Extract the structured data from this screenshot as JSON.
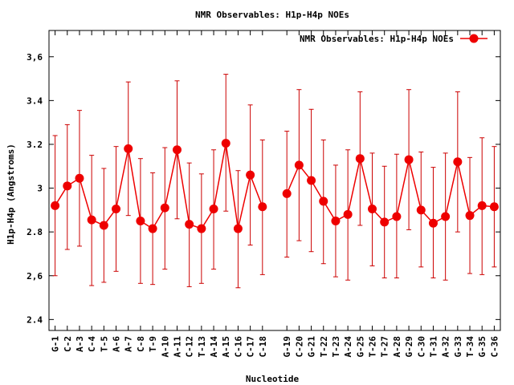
{
  "chart_data": {
    "type": "line",
    "title": "NMR Observables: H1p-H4p NOEs",
    "xlabel": "Nucleotide",
    "ylabel": "H1p-H4p (Angstroms)",
    "ylim": [
      2.35,
      3.72
    ],
    "yticks": [
      2.4,
      2.6,
      2.8,
      3,
      3.2,
      3.4,
      3.6
    ],
    "ytick_labels": [
      "2.4",
      "2,6",
      "2.8",
      "3",
      "3.2",
      "3.4",
      "3,6"
    ],
    "grid": false,
    "legend_position": "top-right",
    "series_color": "#ee0000",
    "error_bar_color": "#cc0000",
    "series": [
      {
        "name": "NMR Observables: H1p-H4p NOEs",
        "points": [
          {
            "label": "G-1",
            "x": 1,
            "y": 2.92,
            "lo": 2.6,
            "hi": 3.24
          },
          {
            "label": "C-2",
            "x": 2,
            "y": 3.01,
            "lo": 2.72,
            "hi": 3.29
          },
          {
            "label": "A-3",
            "x": 3,
            "y": 3.045,
            "lo": 2.735,
            "hi": 3.355
          },
          {
            "label": "C-4",
            "x": 4,
            "y": 2.855,
            "lo": 2.555,
            "hi": 3.15
          },
          {
            "label": "T-5",
            "x": 5,
            "y": 2.83,
            "lo": 2.57,
            "hi": 3.09
          },
          {
            "label": "A-6",
            "x": 6,
            "y": 2.905,
            "lo": 2.62,
            "hi": 3.19
          },
          {
            "label": "A-7",
            "x": 7,
            "y": 3.18,
            "lo": 2.875,
            "hi": 3.485
          },
          {
            "label": "C-8",
            "x": 8,
            "y": 2.85,
            "lo": 2.565,
            "hi": 3.135
          },
          {
            "label": "T-9",
            "x": 9,
            "y": 2.815,
            "lo": 2.56,
            "hi": 3.07
          },
          {
            "label": "A-10",
            "x": 10,
            "y": 2.91,
            "lo": 2.63,
            "hi": 3.185
          },
          {
            "label": "A-11",
            "x": 11,
            "y": 3.175,
            "lo": 2.86,
            "hi": 3.49
          },
          {
            "label": "C-12",
            "x": 12,
            "y": 2.835,
            "lo": 2.55,
            "hi": 3.115
          },
          {
            "label": "T-13",
            "x": 13,
            "y": 2.815,
            "lo": 2.565,
            "hi": 3.065
          },
          {
            "label": "A-14",
            "x": 14,
            "y": 2.905,
            "lo": 2.63,
            "hi": 3.175
          },
          {
            "label": "A-15",
            "x": 15,
            "y": 3.205,
            "lo": 2.895,
            "hi": 3.52
          },
          {
            "label": "C-16",
            "x": 16,
            "y": 2.815,
            "lo": 2.545,
            "hi": 3.08
          },
          {
            "label": "C-17",
            "x": 17,
            "y": 3.06,
            "lo": 2.74,
            "hi": 3.38
          },
          {
            "label": "C-18",
            "x": 18,
            "y": 2.915,
            "lo": 2.605,
            "hi": 3.22
          },
          {
            "label": "G-19",
            "x": 20,
            "y": 2.975,
            "lo": 2.685,
            "hi": 3.26
          },
          {
            "label": "C-20",
            "x": 21,
            "y": 3.105,
            "lo": 2.76,
            "hi": 3.45
          },
          {
            "label": "G-21",
            "x": 22,
            "y": 3.035,
            "lo": 2.71,
            "hi": 3.36
          },
          {
            "label": "T-22",
            "x": 23,
            "y": 2.94,
            "lo": 2.655,
            "hi": 3.22
          },
          {
            "label": "T-23",
            "x": 24,
            "y": 2.85,
            "lo": 2.595,
            "hi": 3.105
          },
          {
            "label": "A-24",
            "x": 25,
            "y": 2.88,
            "lo": 2.58,
            "hi": 3.175
          },
          {
            "label": "G-25",
            "x": 26,
            "y": 3.135,
            "lo": 2.83,
            "hi": 3.44
          },
          {
            "label": "T-26",
            "x": 27,
            "y": 2.905,
            "lo": 2.645,
            "hi": 3.16
          },
          {
            "label": "T-27",
            "x": 28,
            "y": 2.845,
            "lo": 2.59,
            "hi": 3.1
          },
          {
            "label": "A-28",
            "x": 29,
            "y": 2.87,
            "lo": 2.59,
            "hi": 3.155
          },
          {
            "label": "G-29",
            "x": 30,
            "y": 3.13,
            "lo": 2.81,
            "hi": 3.45
          },
          {
            "label": "C-30",
            "x": 31,
            "y": 2.9,
            "lo": 2.64,
            "hi": 3.165
          },
          {
            "label": "T-31",
            "x": 32,
            "y": 2.84,
            "lo": 2.59,
            "hi": 3.095
          },
          {
            "label": "A-32",
            "x": 33,
            "y": 2.87,
            "lo": 2.58,
            "hi": 3.16
          },
          {
            "label": "G-33",
            "x": 34,
            "y": 3.12,
            "lo": 2.8,
            "hi": 3.44
          },
          {
            "label": "T-34",
            "x": 35,
            "y": 2.875,
            "lo": 2.61,
            "hi": 3.14
          },
          {
            "label": "G-35",
            "x": 36,
            "y": 2.92,
            "lo": 2.605,
            "hi": 3.23
          },
          {
            "label": "C-36",
            "x": 37,
            "y": 2.915,
            "lo": 2.64,
            "hi": 3.19
          }
        ]
      }
    ]
  }
}
